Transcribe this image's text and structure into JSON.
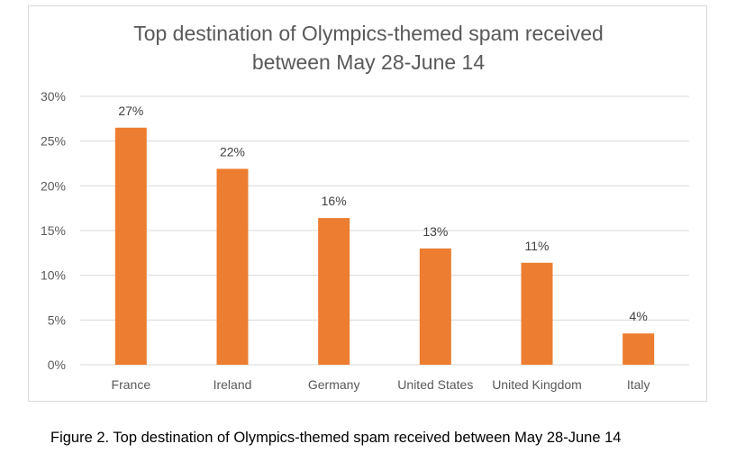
{
  "chart_data": {
    "type": "bar",
    "title": [
      "Top destination of Olympics-themed spam received",
      "between May 28-June 14"
    ],
    "categories": [
      "France",
      "Ireland",
      "Germany",
      "United States",
      "United Kingdom",
      "Italy"
    ],
    "values": [
      26.5,
      21.9,
      16.4,
      13.0,
      11.4,
      3.5
    ],
    "data_labels": [
      "27%",
      "22%",
      "16%",
      "13%",
      "11%",
      "4%"
    ],
    "ylim": [
      0,
      30
    ],
    "yticks": [
      0,
      5,
      10,
      15,
      20,
      25,
      30
    ],
    "ytick_labels": [
      "0%",
      "5%",
      "10%",
      "15%",
      "20%",
      "25%",
      "30%"
    ],
    "xlabel": "",
    "ylabel": "",
    "grid": true,
    "legend": "none",
    "bar_color": "#ED7D31",
    "grid_color": "#D9D9D9"
  },
  "caption": "Figure 2. Top destination of Olympics-themed spam received between May 28-June 14"
}
